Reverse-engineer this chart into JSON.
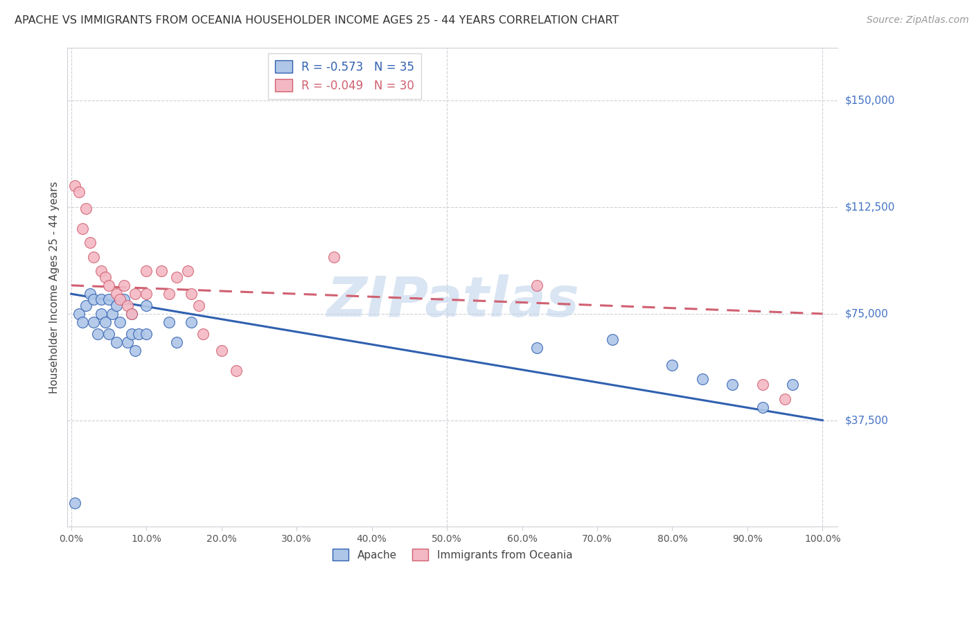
{
  "title": "APACHE VS IMMIGRANTS FROM OCEANIA HOUSEHOLDER INCOME AGES 25 - 44 YEARS CORRELATION CHART",
  "source": "Source: ZipAtlas.com",
  "ylabel": "Householder Income Ages 25 - 44 years",
  "ytick_labels": [
    "$37,500",
    "$75,000",
    "$112,500",
    "$150,000"
  ],
  "ytick_values": [
    37500,
    75000,
    112500,
    150000
  ],
  "ymin": 0,
  "ymax": 168750,
  "xmin": -0.005,
  "xmax": 1.02,
  "legend_blue_r": "-0.573",
  "legend_blue_n": "35",
  "legend_pink_r": "-0.049",
  "legend_pink_n": "30",
  "blue_fill": "#aec6e8",
  "pink_fill": "#f4b8c4",
  "line_blue": "#3060b0",
  "line_pink": "#d06070",
  "ytick_color": "#4472c4",
  "watermark": "ZIPatlas",
  "apache_x": [
    0.005,
    0.01,
    0.015,
    0.02,
    0.025,
    0.03,
    0.03,
    0.035,
    0.04,
    0.04,
    0.045,
    0.05,
    0.05,
    0.055,
    0.06,
    0.06,
    0.065,
    0.07,
    0.075,
    0.08,
    0.08,
    0.085,
    0.09,
    0.1,
    0.1,
    0.13,
    0.14,
    0.16,
    0.62,
    0.72,
    0.8,
    0.84,
    0.88,
    0.92,
    0.96
  ],
  "apache_y": [
    8500,
    75000,
    72000,
    78000,
    82000,
    80000,
    72000,
    68000,
    80000,
    75000,
    72000,
    80000,
    68000,
    75000,
    78000,
    65000,
    72000,
    80000,
    65000,
    75000,
    68000,
    62000,
    68000,
    78000,
    68000,
    72000,
    65000,
    72000,
    63000,
    66000,
    57000,
    52000,
    50000,
    42000,
    50000
  ],
  "oceania_x": [
    0.005,
    0.01,
    0.015,
    0.02,
    0.025,
    0.03,
    0.04,
    0.045,
    0.05,
    0.06,
    0.065,
    0.07,
    0.075,
    0.08,
    0.085,
    0.1,
    0.1,
    0.12,
    0.13,
    0.14,
    0.155,
    0.16,
    0.17,
    0.175,
    0.2,
    0.22,
    0.35,
    0.62,
    0.92,
    0.95
  ],
  "oceania_y": [
    120000,
    118000,
    105000,
    112000,
    100000,
    95000,
    90000,
    88000,
    85000,
    82000,
    80000,
    85000,
    78000,
    75000,
    82000,
    90000,
    82000,
    90000,
    82000,
    88000,
    90000,
    82000,
    78000,
    68000,
    62000,
    55000,
    95000,
    85000,
    50000,
    45000
  ]
}
